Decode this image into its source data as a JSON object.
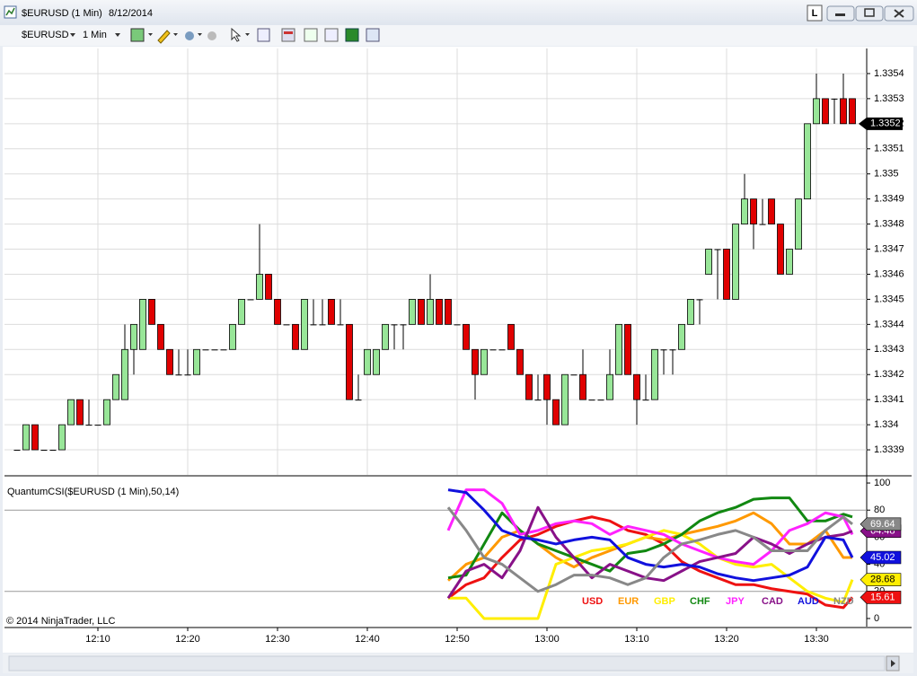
{
  "window": {
    "title": "$EURUSD (1 Min)",
    "date": "8/12/2014",
    "instrument": "$EURUSD",
    "interval": "1 Min",
    "layout_button": "L",
    "copyright": "© 2014 NinjaTrader, LLC"
  },
  "chart_data": [
    {
      "type": "candlestick",
      "open": [
        1.3339,
        1.3339,
        1.334,
        1.3339,
        1.3339,
        1.3339,
        1.334,
        1.3341,
        1.334,
        1.334,
        1.334,
        1.3341,
        1.3341,
        1.3343,
        1.3343,
        1.3345,
        1.3344,
        1.3343,
        1.3342,
        1.3342,
        1.3342,
        1.3343,
        1.3343,
        1.3343,
        1.3343,
        1.3344,
        1.3345,
        1.3345,
        1.3346,
        1.3345,
        1.3344,
        1.3344,
        1.3343,
        1.3344,
        1.3344,
        1.3345,
        1.3344,
        1.3344,
        1.3341,
        1.3342,
        1.3342,
        1.3343,
        1.3344,
        1.3344,
        1.3344,
        1.3345,
        1.3344,
        1.3345,
        1.3345,
        1.3344,
        1.3344,
        1.3343,
        1.3342,
        1.3343,
        1.3343,
        1.3344,
        1.3343,
        1.3342,
        1.3341,
        1.3342,
        1.3341,
        1.334,
        1.3342,
        1.3342,
        1.3341,
        1.3341,
        1.3341,
        1.3342,
        1.3344,
        1.3342,
        1.3341,
        1.3341,
        1.3343,
        1.3343,
        1.3343,
        1.3344,
        1.3345,
        1.3346,
        1.3347,
        1.3347,
        1.3345,
        1.3348,
        1.3349,
        1.3348,
        1.3349,
        1.3348,
        1.3346,
        1.3347,
        1.3349,
        1.3352,
        1.3353,
        1.3353,
        1.3353,
        1.3353
      ],
      "high": [
        1.3339,
        1.334,
        1.334,
        1.3339,
        1.3339,
        1.334,
        1.3341,
        1.3341,
        1.3341,
        1.334,
        1.3341,
        1.3342,
        1.3344,
        1.3344,
        1.3345,
        1.3345,
        1.3344,
        1.3343,
        1.3343,
        1.3343,
        1.3343,
        1.3343,
        1.3343,
        1.3343,
        1.3344,
        1.3345,
        1.3345,
        1.3348,
        1.3346,
        1.3345,
        1.3344,
        1.3344,
        1.3345,
        1.3345,
        1.3345,
        1.3345,
        1.3345,
        1.3344,
        1.3342,
        1.3343,
        1.3343,
        1.3344,
        1.3344,
        1.3344,
        1.3345,
        1.3345,
        1.3346,
        1.3345,
        1.3345,
        1.3344,
        1.3344,
        1.3343,
        1.3343,
        1.3343,
        1.3343,
        1.3344,
        1.3343,
        1.3342,
        1.3342,
        1.3342,
        1.3341,
        1.3342,
        1.3342,
        1.3343,
        1.3341,
        1.3341,
        1.3343,
        1.3344,
        1.3344,
        1.3342,
        1.3342,
        1.3343,
        1.3343,
        1.3343,
        1.3344,
        1.3345,
        1.3345,
        1.3347,
        1.3347,
        1.3347,
        1.3348,
        1.335,
        1.3349,
        1.3349,
        1.3349,
        1.3348,
        1.3347,
        1.3349,
        1.3352,
        1.3354,
        1.3353,
        1.3353,
        1.3354,
        1.3353
      ],
      "low": [
        1.3339,
        1.3339,
        1.3339,
        1.3339,
        1.3339,
        1.3339,
        1.334,
        1.334,
        1.334,
        1.334,
        1.334,
        1.3341,
        1.3341,
        1.3342,
        1.3343,
        1.3344,
        1.3343,
        1.3342,
        1.3342,
        1.3342,
        1.3342,
        1.3343,
        1.3343,
        1.3343,
        1.3343,
        1.3344,
        1.3345,
        1.3345,
        1.3345,
        1.3344,
        1.3344,
        1.3343,
        1.3343,
        1.3344,
        1.3344,
        1.3344,
        1.3344,
        1.3341,
        1.3341,
        1.3342,
        1.3342,
        1.3343,
        1.3343,
        1.3343,
        1.3344,
        1.3344,
        1.3344,
        1.3344,
        1.3344,
        1.3344,
        1.3343,
        1.3341,
        1.3342,
        1.3343,
        1.3343,
        1.3343,
        1.3342,
        1.3341,
        1.3341,
        1.334,
        1.334,
        1.334,
        1.3342,
        1.3341,
        1.3341,
        1.3341,
        1.3341,
        1.3342,
        1.3342,
        1.334,
        1.3341,
        1.3341,
        1.3342,
        1.3342,
        1.3343,
        1.3344,
        1.3344,
        1.3346,
        1.3345,
        1.3345,
        1.3345,
        1.3348,
        1.3347,
        1.3348,
        1.3348,
        1.3346,
        1.3346,
        1.3347,
        1.3349,
        1.3352,
        1.3352,
        1.3352,
        1.3352,
        1.3352
      ],
      "close": [
        1.3339,
        1.334,
        1.3339,
        1.3339,
        1.3339,
        1.334,
        1.3341,
        1.334,
        1.334,
        1.334,
        1.3341,
        1.3342,
        1.3343,
        1.3344,
        1.3345,
        1.3344,
        1.3343,
        1.3342,
        1.3342,
        1.3342,
        1.3343,
        1.3343,
        1.3343,
        1.3343,
        1.3344,
        1.3345,
        1.3345,
        1.3346,
        1.3345,
        1.3344,
        1.3344,
        1.3343,
        1.3345,
        1.3344,
        1.3344,
        1.3344,
        1.3344,
        1.3341,
        1.3341,
        1.3343,
        1.3343,
        1.3344,
        1.3344,
        1.3344,
        1.3345,
        1.3344,
        1.3345,
        1.3344,
        1.3344,
        1.3344,
        1.3343,
        1.3342,
        1.3343,
        1.3343,
        1.3343,
        1.3343,
        1.3342,
        1.3341,
        1.3341,
        1.3341,
        1.334,
        1.3342,
        1.3342,
        1.3341,
        1.3341,
        1.3341,
        1.3342,
        1.3344,
        1.3342,
        1.3341,
        1.3341,
        1.3343,
        1.3343,
        1.3343,
        1.3344,
        1.3345,
        1.3345,
        1.3347,
        1.3347,
        1.3345,
        1.3348,
        1.3349,
        1.3348,
        1.3348,
        1.3348,
        1.3346,
        1.3347,
        1.3349,
        1.3352,
        1.3353,
        1.3352,
        1.3353,
        1.3352,
        1.3352
      ],
      "up_color": "#98e698",
      "down_color": "#e00000",
      "xlim": [
        -1.4,
        94.6
      ],
      "ylim": [
        1.3338,
        1.3355
      ],
      "yticks": [
        1.3339,
        1.334,
        1.3341,
        1.3342,
        1.3343,
        1.3344,
        1.3345,
        1.3346,
        1.3347,
        1.3348,
        1.3349,
        1.335,
        1.3351,
        1.3352,
        1.3353,
        1.3354
      ],
      "grid": true,
      "last_price": 1.3352
    },
    {
      "type": "line",
      "title": "QuantumCSI($EURUSD (1 Min),50,14)",
      "x": [
        48,
        50,
        52,
        54,
        56,
        58,
        60,
        62,
        64,
        66,
        68,
        70,
        72,
        74,
        76,
        78,
        80,
        82,
        84,
        86,
        88,
        90,
        92,
        93
      ],
      "series": [
        {
          "name": "USD",
          "color": "#ee1111",
          "marker": true,
          "values": [
            15,
            25,
            30,
            45,
            58,
            62,
            68,
            72,
            75,
            72,
            65,
            62,
            55,
            42,
            35,
            30,
            25,
            25,
            22,
            20,
            18,
            10,
            8,
            15.61
          ]
        },
        {
          "name": "EUR",
          "color": "#ff9900",
          "marker": false,
          "values": [
            28,
            40,
            45,
            60,
            65,
            55,
            45,
            38,
            45,
            50,
            55,
            60,
            58,
            62,
            65,
            68,
            72,
            78,
            70,
            55,
            55,
            65,
            45,
            45
          ]
        },
        {
          "name": "GBP",
          "color": "#ffee00",
          "marker": true,
          "values": [
            15,
            15,
            0,
            0,
            0,
            0,
            40,
            45,
            50,
            52,
            55,
            60,
            65,
            62,
            55,
            45,
            40,
            38,
            40,
            30,
            20,
            15,
            12,
            28.68
          ]
        },
        {
          "name": "CHF",
          "color": "#118811",
          "marker": false,
          "values": [
            30,
            32,
            55,
            78,
            65,
            55,
            50,
            45,
            40,
            35,
            48,
            50,
            55,
            62,
            72,
            78,
            82,
            88,
            89,
            89,
            72,
            72,
            77,
            75
          ]
        },
        {
          "name": "JPY",
          "color": "#ff22ff",
          "marker": false,
          "values": [
            65,
            95,
            95,
            85,
            62,
            65,
            70,
            72,
            70,
            62,
            68,
            65,
            62,
            55,
            50,
            45,
            42,
            40,
            50,
            65,
            70,
            78,
            75,
            62
          ]
        },
        {
          "name": "CAD",
          "color": "#881188",
          "marker": true,
          "values": [
            15,
            35,
            40,
            30,
            50,
            82,
            60,
            45,
            30,
            40,
            35,
            30,
            28,
            35,
            42,
            45,
            48,
            60,
            55,
            48,
            55,
            60,
            62,
            64.48
          ]
        },
        {
          "name": "AUD",
          "color": "#1111dd",
          "marker": true,
          "values": [
            95,
            93,
            80,
            65,
            60,
            58,
            55,
            58,
            60,
            58,
            45,
            40,
            38,
            40,
            38,
            33,
            30,
            28,
            30,
            32,
            38,
            60,
            58,
            45.02
          ]
        },
        {
          "name": "NZD",
          "color": "#888888",
          "marker": true,
          "values": [
            82,
            65,
            45,
            40,
            30,
            20,
            25,
            32,
            32,
            30,
            25,
            30,
            45,
            55,
            58,
            62,
            65,
            60,
            50,
            50,
            50,
            65,
            75,
            69.64
          ]
        }
      ],
      "xlim": [
        -1.4,
        94.6
      ],
      "ylim": [
        -6,
        104
      ],
      "yticks": [
        0,
        20,
        40,
        60,
        80,
        100
      ],
      "levels": [
        80,
        20
      ],
      "xticks": [
        {
          "value": 9,
          "label": "12:10"
        },
        {
          "value": 19,
          "label": "12:20"
        },
        {
          "value": 29,
          "label": "12:30"
        },
        {
          "value": 39,
          "label": "12:40"
        },
        {
          "value": 49,
          "label": "12:50"
        },
        {
          "value": 59,
          "label": "13:00"
        },
        {
          "value": 69,
          "label": "13:10"
        },
        {
          "value": 79,
          "label": "13:20"
        },
        {
          "value": 89,
          "label": "13:30"
        }
      ]
    }
  ]
}
